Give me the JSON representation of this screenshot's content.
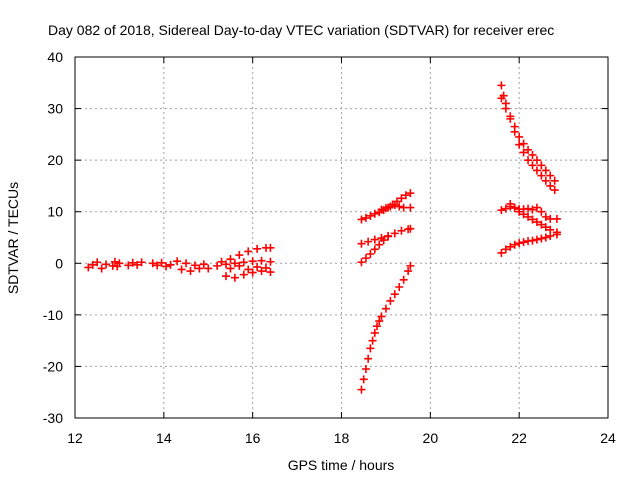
{
  "chart_data": {
    "type": "scatter",
    "title": "Day 082 of 2018, Sidereal Day-to-day VTEC variation (SDTVAR) for receiver erec",
    "xlabel": "GPS time / hours",
    "ylabel": "SDTVAR / TECUs",
    "xlim": [
      12,
      24
    ],
    "ylim": [
      -30,
      40
    ],
    "xticks": [
      12,
      14,
      16,
      18,
      20,
      22,
      24
    ],
    "yticks": [
      -30,
      -20,
      -10,
      0,
      10,
      20,
      30,
      40
    ],
    "grid": true,
    "marker": "+",
    "color": "#ff0000",
    "series": [
      {
        "x": [
          12.3,
          12.4,
          12.5,
          12.6,
          12.7
        ],
        "y": [
          -0.8,
          -0.3,
          0.2,
          -1.0,
          -0.2
        ]
      },
      {
        "x": [
          12.85,
          12.9,
          12.95,
          13.0
        ],
        "y": [
          -0.5,
          0.3,
          -0.6,
          0.0
        ]
      },
      {
        "x": [
          13.2,
          13.3,
          13.4,
          13.5
        ],
        "y": [
          -0.4,
          0.1,
          -0.3,
          0.2
        ]
      },
      {
        "x": [
          13.75,
          13.85,
          13.95,
          14.05,
          14.15
        ],
        "y": [
          0.0,
          -0.4,
          0.1,
          -0.6,
          -0.3
        ]
      },
      {
        "x": [
          14.3,
          14.4,
          14.5,
          14.6,
          14.7,
          14.8,
          14.9
        ],
        "y": [
          0.4,
          -1.2,
          0.0,
          -1.5,
          -0.4,
          -1.0,
          -0.2
        ]
      },
      {
        "x": [
          15.0,
          15.2,
          15.4,
          15.6,
          15.8,
          16.0,
          16.2,
          16.4
        ],
        "y": [
          -1.0,
          -0.5,
          -0.2,
          0.0,
          0.2,
          0.4,
          0.5,
          0.3
        ]
      },
      {
        "x": [
          15.4,
          15.6,
          15.8,
          16.0,
          16.2,
          16.4
        ],
        "y": [
          -2.5,
          -2.8,
          -2.2,
          -1.8,
          -1.5,
          -1.7
        ]
      },
      {
        "x": [
          15.3,
          15.5,
          15.7,
          15.9,
          16.1,
          16.3,
          16.4
        ],
        "y": [
          0.3,
          0.8,
          1.6,
          2.3,
          2.8,
          3.0,
          3.0
        ]
      },
      {
        "x": [
          15.5,
          15.7,
          15.9,
          16.1,
          16.3
        ],
        "y": [
          -1.0,
          -0.5,
          -1.2,
          -0.7,
          -0.9
        ]
      },
      {
        "x": [
          18.45,
          18.55,
          18.65,
          18.75,
          18.85,
          18.95,
          19.05,
          19.15,
          19.25,
          19.35,
          19.45,
          19.55
        ],
        "y": [
          8.5,
          8.8,
          9.2,
          9.6,
          9.9,
          10.3,
          10.8,
          11.4,
          12.0,
          12.6,
          13.2,
          13.6
        ]
      },
      {
        "x": [
          18.9,
          19.0,
          19.1,
          19.2,
          19.3,
          19.4,
          19.55
        ],
        "y": [
          10.4,
          10.7,
          11.0,
          11.3,
          11.0,
          10.8,
          10.8
        ]
      },
      {
        "x": [
          18.45,
          18.6,
          18.75,
          18.9,
          19.05,
          19.2,
          19.35,
          19.5,
          19.55
        ],
        "y": [
          3.8,
          4.2,
          4.6,
          4.9,
          5.3,
          5.8,
          6.3,
          6.6,
          6.7
        ]
      },
      {
        "x": [
          18.45,
          18.55,
          18.65,
          18.75,
          18.85,
          18.95,
          19.05
        ],
        "y": [
          0.2,
          1.0,
          1.8,
          2.7,
          3.6,
          4.5,
          5.2
        ]
      },
      {
        "x": [
          18.45,
          18.5,
          18.55,
          18.6,
          18.65,
          18.7,
          18.75,
          18.8,
          18.85,
          18.9,
          19.0,
          19.1,
          19.2,
          19.3,
          19.4,
          19.5,
          19.55
        ],
        "y": [
          -24.5,
          -22.5,
          -20.5,
          -18.5,
          -16.5,
          -15.0,
          -13.5,
          -12.2,
          -11.2,
          -10.3,
          -8.8,
          -7.3,
          -6.0,
          -4.6,
          -3.2,
          -1.5,
          -0.5
        ]
      },
      {
        "x": [
          21.6,
          21.65,
          21.7,
          21.8,
          21.9,
          22.0,
          22.1,
          22.2,
          22.3,
          22.4,
          22.5,
          22.6,
          22.7,
          22.8
        ],
        "y": [
          34.5,
          32.5,
          31.0,
          28.5,
          26.5,
          24.5,
          23.2,
          22.0,
          21.0,
          20.0,
          19.0,
          18.0,
          17.0,
          16.0
        ]
      },
      {
        "x": [
          21.6,
          21.7,
          21.8,
          21.9,
          22.0,
          22.1,
          22.2,
          22.3,
          22.4,
          22.5,
          22.6,
          22.7,
          22.8
        ],
        "y": [
          32.0,
          30.0,
          28.0,
          25.5,
          23.0,
          21.5,
          20.0,
          19.0,
          18.0,
          17.0,
          16.0,
          15.0,
          14.2
        ]
      },
      {
        "x": [
          21.6,
          21.7,
          21.8,
          21.9,
          22.0,
          22.1,
          22.2,
          22.3,
          22.4,
          22.5,
          22.6,
          22.7,
          22.85
        ],
        "y": [
          10.3,
          10.6,
          11.0,
          10.7,
          10.5,
          10.5,
          10.6,
          10.4,
          10.8,
          10.0,
          9.0,
          8.6,
          8.6
        ]
      },
      {
        "x": [
          21.8,
          21.9,
          22.0,
          22.1,
          22.2,
          22.3,
          22.4,
          22.5,
          22.6,
          22.7,
          22.85
        ],
        "y": [
          11.5,
          10.8,
          10.0,
          9.5,
          9.0,
          8.5,
          8.0,
          7.5,
          7.0,
          6.5,
          6.0
        ]
      },
      {
        "x": [
          21.6,
          21.7,
          21.8,
          21.9,
          22.0,
          22.1,
          22.2,
          22.3,
          22.4,
          22.5,
          22.6,
          22.7,
          22.85
        ],
        "y": [
          2.0,
          2.7,
          3.2,
          3.6,
          3.9,
          4.1,
          4.3,
          4.4,
          4.6,
          4.8,
          5.0,
          5.3,
          5.6
        ]
      }
    ]
  }
}
